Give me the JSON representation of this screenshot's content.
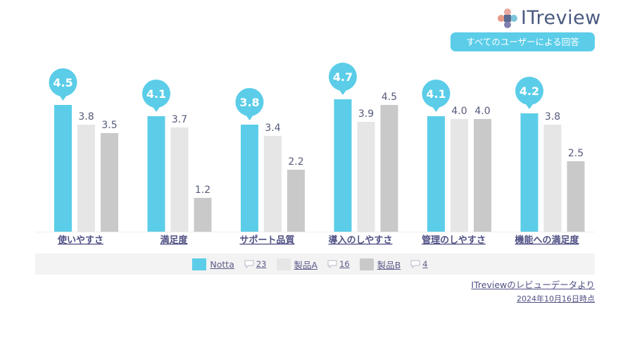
{
  "logo": {
    "text_it": "IT",
    "text_review": "review"
  },
  "badge": {
    "text": "すべてのユーザーによる回答"
  },
  "colors": {
    "notta": "#5bcde8",
    "product_a": "#e6e6e6",
    "product_b": "#c9c9c9",
    "badge": "#5bcde8"
  },
  "chart_data": {
    "type": "bar",
    "categories": [
      "使いやすさ",
      "満足度",
      "サポート品質",
      "導入のしやすさ",
      "管理のしやすさ",
      "機能への満足度"
    ],
    "series": [
      {
        "name": "Notta",
        "values": [
          4.5,
          4.1,
          3.8,
          4.7,
          4.1,
          4.2
        ]
      },
      {
        "name": "製品A",
        "values": [
          3.8,
          3.7,
          3.4,
          3.9,
          4.0,
          3.8
        ]
      },
      {
        "name": "製品B",
        "values": [
          3.5,
          1.2,
          2.2,
          4.5,
          4.0,
          2.5
        ]
      }
    ],
    "ylim": [
      0,
      5
    ],
    "grid": false,
    "legend_position": "bottom",
    "title": "",
    "xlabel": "",
    "ylabel": ""
  },
  "legend": {
    "items": [
      {
        "name": "Notta",
        "count": "23",
        "color_key": "notta",
        "icon": "comment-icon"
      },
      {
        "name": "製品A",
        "count": "16",
        "color_key": "product_a",
        "icon": "comment-icon"
      },
      {
        "name": "製品B",
        "count": "4",
        "color_key": "product_b",
        "icon": "comment-icon"
      }
    ]
  },
  "source": {
    "text": "ITreviewのレビューデータより"
  },
  "date": {
    "text": "2024年10月16日時点"
  }
}
